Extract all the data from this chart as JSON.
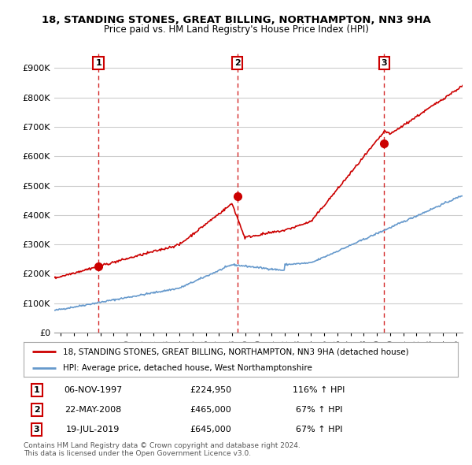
{
  "title_line1": "18, STANDING STONES, GREAT BILLING, NORTHAMPTON, NN3 9HA",
  "title_line2": "Price paid vs. HM Land Registry's House Price Index (HPI)",
  "legend_line1": "18, STANDING STONES, GREAT BILLING, NORTHAMPTON, NN3 9HA (detached house)",
  "legend_line2": "HPI: Average price, detached house, West Northamptonshire",
  "footer": "Contains HM Land Registry data © Crown copyright and database right 2024.\nThis data is licensed under the Open Government Licence v3.0.",
  "sale_points": [
    {
      "date": 1997.85,
      "price": 224950,
      "label": "1"
    },
    {
      "date": 2008.39,
      "price": 465000,
      "label": "2"
    },
    {
      "date": 2019.55,
      "price": 645000,
      "label": "3"
    }
  ],
  "table_rows": [
    {
      "num": "1",
      "date": "06-NOV-1997",
      "price": "£224,950",
      "change": "116% ↑ HPI"
    },
    {
      "num": "2",
      "date": "22-MAY-2008",
      "price": "£465,000",
      "change": "67% ↑ HPI"
    },
    {
      "num": "3",
      "date": "19-JUL-2019",
      "price": "£645,000",
      "change": "67% ↑ HPI"
    }
  ],
  "property_line_color": "#cc0000",
  "hpi_line_color": "#6699cc",
  "dashed_vline_color": "#cc0000",
  "background_color": "#ffffff",
  "grid_color": "#cccccc",
  "ylim": [
    0,
    950000
  ],
  "xlim_start": 1994.5,
  "xlim_end": 2025.5,
  "yticks": [
    0,
    100000,
    200000,
    300000,
    400000,
    500000,
    600000,
    700000,
    800000,
    900000
  ],
  "xticks": [
    1995,
    1996,
    1997,
    1998,
    1999,
    2000,
    2001,
    2002,
    2003,
    2004,
    2005,
    2006,
    2007,
    2008,
    2009,
    2010,
    2011,
    2012,
    2013,
    2014,
    2015,
    2016,
    2017,
    2018,
    2019,
    2020,
    2021,
    2022,
    2023,
    2024,
    2025
  ]
}
